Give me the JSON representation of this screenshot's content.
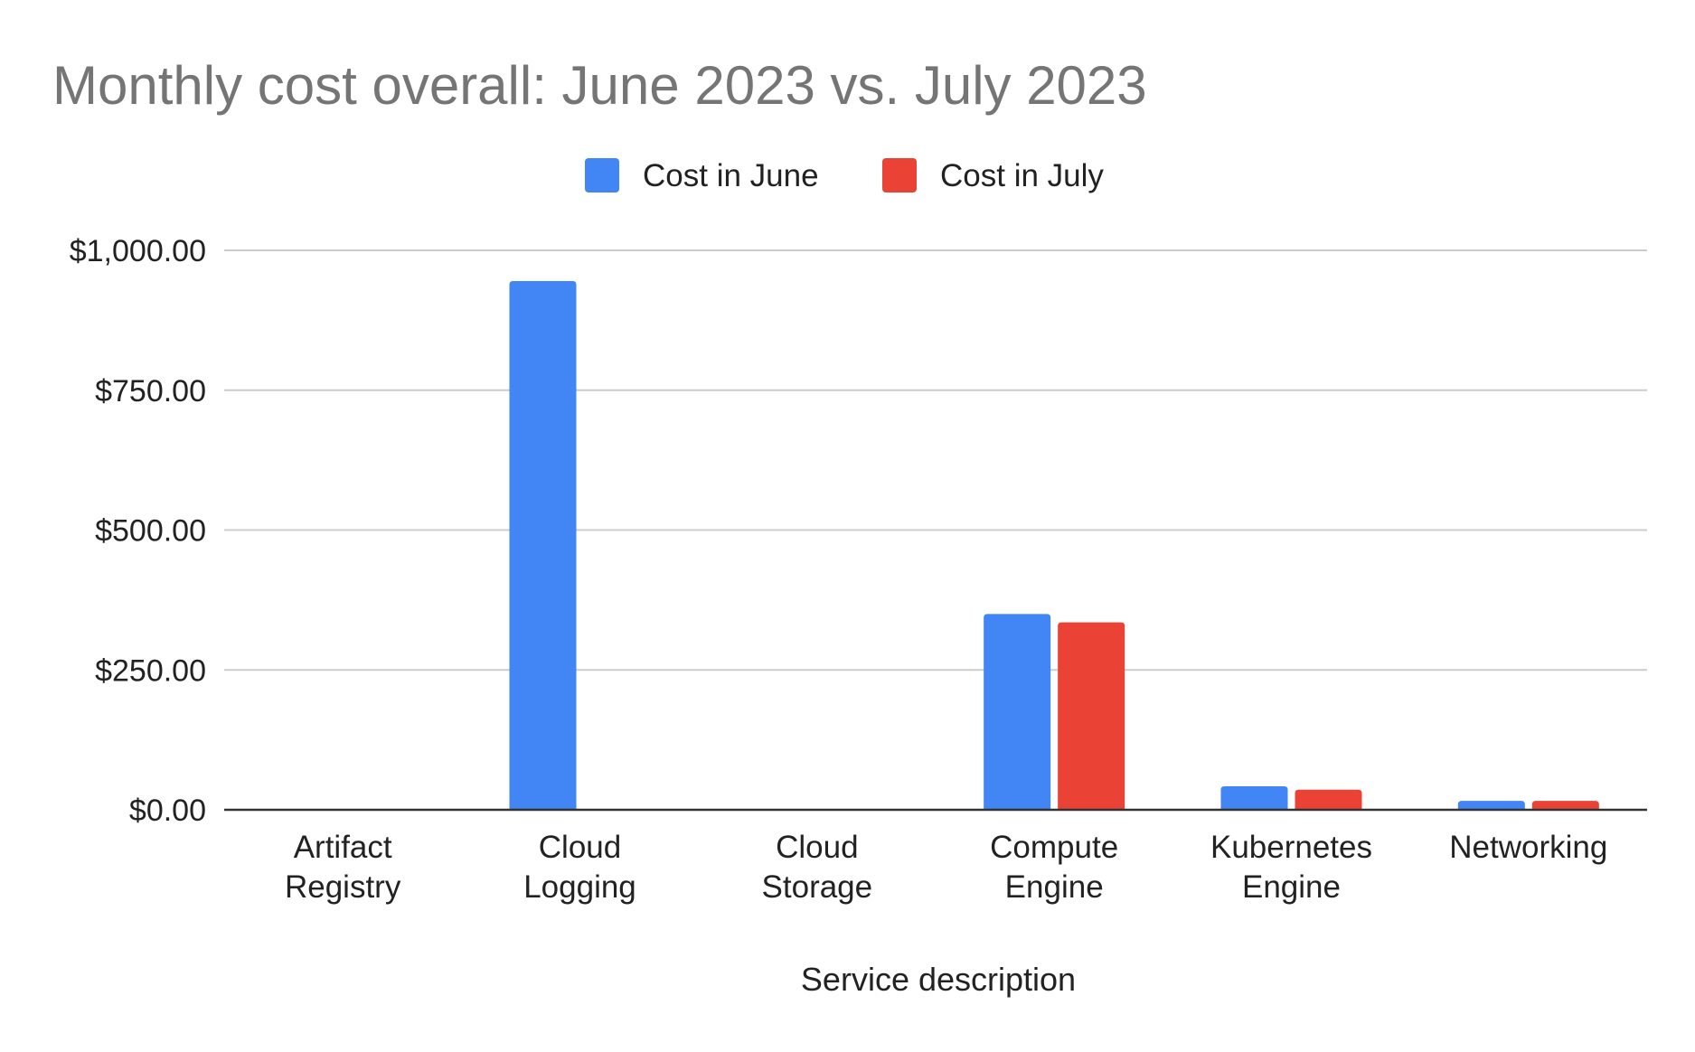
{
  "chart_data": {
    "type": "bar",
    "title": "Monthly cost overall:  June 2023 vs. July 2023",
    "xlabel": "Service description",
    "ylabel": "",
    "categories": [
      [
        "Artifact",
        "Registry"
      ],
      [
        "Cloud",
        "Logging"
      ],
      [
        "Cloud",
        "Storage"
      ],
      [
        "Compute",
        "Engine"
      ],
      [
        "Kubernetes",
        "Engine"
      ],
      [
        "Networking"
      ]
    ],
    "series": [
      {
        "name": "Cost in June",
        "color": "#4285f4",
        "values": [
          0,
          945,
          0,
          350,
          42,
          16
        ]
      },
      {
        "name": "Cost in July",
        "color": "#ea4335",
        "values": [
          0,
          0,
          0,
          335,
          36,
          16
        ]
      }
    ],
    "ylim": [
      0,
      1000
    ],
    "yticks": [
      0,
      250,
      500,
      750,
      1000
    ],
    "ytick_labels": [
      "$0.00",
      "$250.00",
      "$500.00",
      "$750.00",
      "$1,000.00"
    ],
    "grid": true,
    "legend_position": "top-center"
  },
  "colors": {
    "title": "#757575",
    "text": "#222222",
    "grid": "#cccccc",
    "axis": "#333333"
  }
}
